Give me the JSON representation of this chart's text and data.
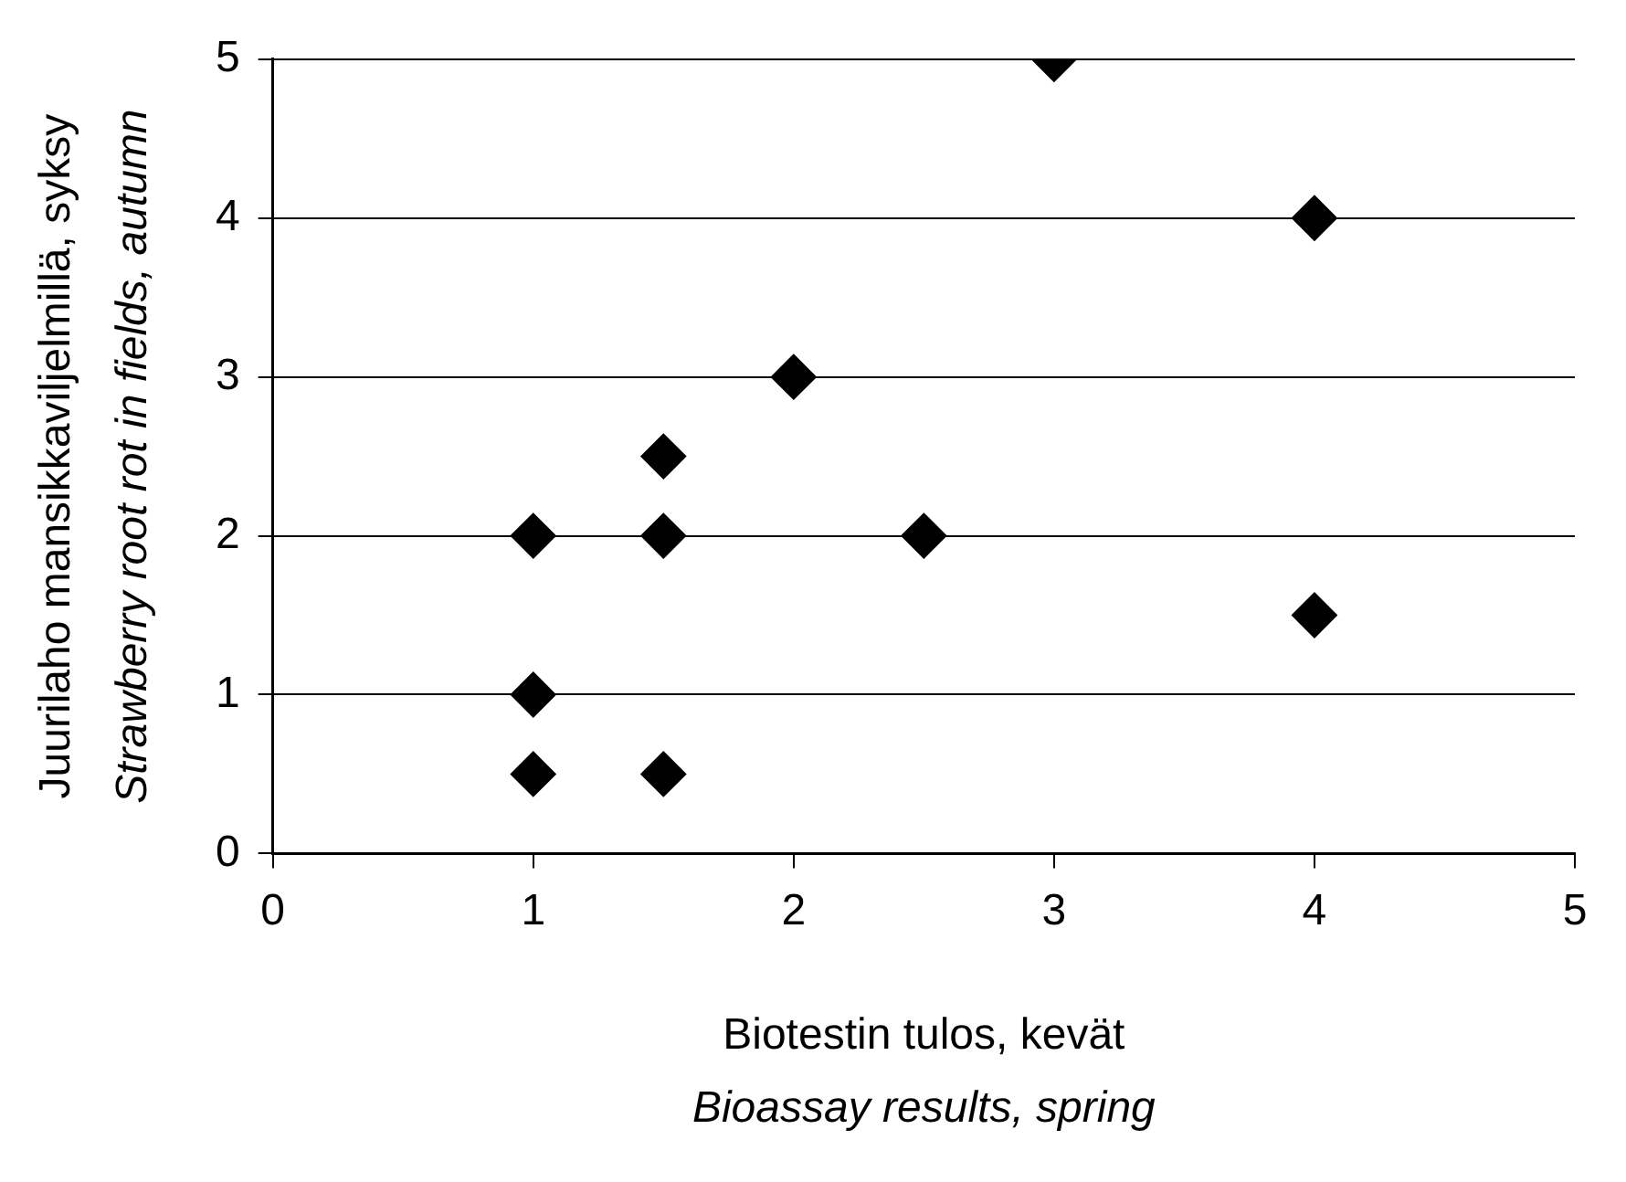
{
  "chart_data": {
    "type": "scatter",
    "xlabel": "Biotestin tulos, kevät\nBioassay results, spring",
    "ylabel": "Juurilaho mansikkaviljelmillä, syksy\nStrawberry root rot in fields, autumn",
    "series": [
      {
        "color": "#000000",
        "x": [
          1,
          1,
          1,
          1.5,
          1.5,
          1.5,
          2,
          2.5,
          3,
          4,
          4
        ],
        "values": [
          2,
          1,
          0.5,
          2.5,
          2,
          0.5,
          3,
          2,
          5,
          4,
          1.5
        ]
      }
    ],
    "xlim": [
      0,
      5
    ],
    "xticks": [
      0,
      1,
      2,
      3,
      4,
      5
    ],
    "ylim": [
      0,
      5
    ],
    "yticks": [
      0,
      1,
      2,
      3,
      4,
      5
    ],
    "grid": "y",
    "marker": "diamond",
    "legend": false
  }
}
